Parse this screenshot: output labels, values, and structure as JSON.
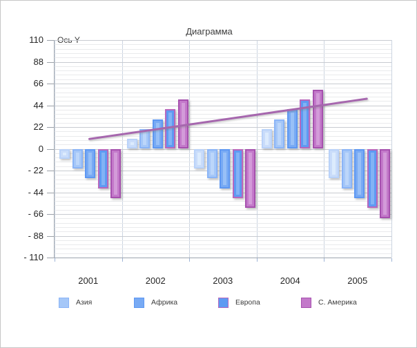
{
  "window": {
    "background": "#ffffff",
    "border_color": "#c6c6c6"
  },
  "chart_data": {
    "type": "bar",
    "title": "Диаграмма",
    "y_axis_label": "Ось Y",
    "categories": [
      "2001",
      "2002",
      "2003",
      "2004",
      "2005"
    ],
    "ylim": [
      -110,
      110
    ],
    "y_major_step": 22,
    "y_minor_per_major": 5,
    "y_ticks": [
      110,
      88,
      66,
      44,
      22,
      0,
      -22,
      -44,
      -66,
      -88,
      -110
    ],
    "y_tick_labels": [
      "110",
      "88",
      "66",
      "44",
      "22",
      "0",
      "- 22",
      "- 44",
      "- 66",
      "- 88",
      "- 110"
    ],
    "grid": true,
    "legend_position": "bottom",
    "series": [
      {
        "name": "",
        "in_legend": false,
        "values": [
          -10,
          10,
          -20,
          20,
          -30
        ],
        "border": "#b9d2f9",
        "fill": "#c9dcfa",
        "inner": "#dcebfd"
      },
      {
        "name": "Азия",
        "in_legend": true,
        "values": [
          -20,
          20,
          -30,
          30,
          -40
        ],
        "border": "#8ab4f7",
        "fill": "#a5c7f8",
        "inner": "#bcd6fa"
      },
      {
        "name": "Африка",
        "in_legend": true,
        "values": [
          -30,
          30,
          -40,
          40,
          -50
        ],
        "border": "#5d97f2",
        "fill": "#78aaf4",
        "inner": "#98c0f7"
      },
      {
        "name": "Европа",
        "in_legend": true,
        "values": [
          -40,
          40,
          -50,
          50,
          -60
        ],
        "border": "#b767bd",
        "fill": "#5e9af2",
        "inner": "#82b3f5"
      },
      {
        "name": "С. Америка",
        "in_legend": true,
        "values": [
          -50,
          50,
          -60,
          60,
          -70
        ],
        "border": "#a650ae",
        "fill": "#c379ca",
        "inner": "#d39bd9"
      }
    ],
    "trend_line": {
      "color": "#a667ae",
      "start_category": 0,
      "end_category": 4,
      "start_value": 10,
      "end_value": 51
    }
  },
  "colors": {
    "grid_minor": "#e9eaec",
    "grid_major": "#c8cbd0",
    "grid_vertical": "#ccd5e1",
    "x_axis_line": "#9ba3ad",
    "y_axis_line": "#a7adb5"
  }
}
